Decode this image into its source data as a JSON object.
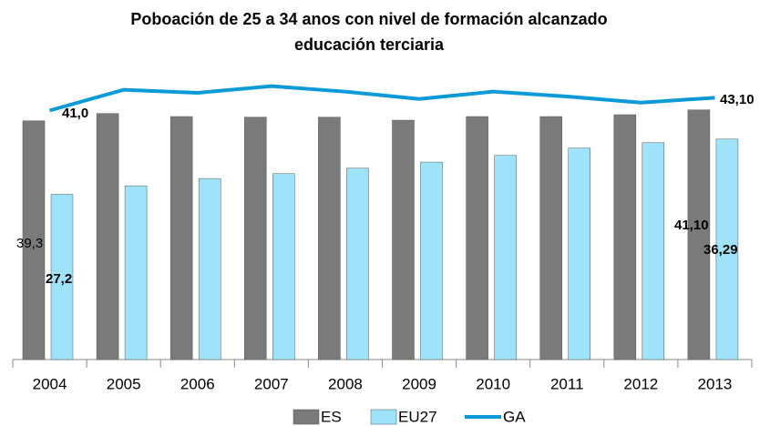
{
  "chart_data": {
    "type": "bar",
    "title": [
      "Poboación de 25 a 34 anos con nivel de formación alcanzado",
      "educación terciaria"
    ],
    "categories": [
      "2004",
      "2005",
      "2006",
      "2007",
      "2008",
      "2009",
      "2010",
      "2011",
      "2012",
      "2013"
    ],
    "ylim": [
      0,
      46
    ],
    "series": [
      {
        "name": "ES",
        "type": "bar",
        "color": "#7a7a7a",
        "values": [
          39.3,
          40.5,
          40.0,
          39.9,
          39.9,
          39.4,
          40.0,
          40.0,
          40.3,
          41.1
        ],
        "value_labels": [
          "39,3",
          null,
          null,
          null,
          null,
          null,
          null,
          null,
          null,
          "41,10"
        ]
      },
      {
        "name": "EU27",
        "type": "bar",
        "color": "#9ee3f9",
        "values": [
          27.2,
          28.6,
          29.8,
          30.6,
          31.5,
          32.5,
          33.6,
          34.8,
          35.7,
          36.29
        ],
        "value_labels": [
          "27,2",
          null,
          null,
          null,
          null,
          null,
          null,
          null,
          null,
          "36,29"
        ]
      },
      {
        "name": "GA",
        "type": "line",
        "color": "#0a9ad8",
        "values": [
          41.0,
          44.4,
          43.9,
          45.0,
          44.1,
          42.9,
          44.1,
          43.3,
          42.3,
          43.1
        ],
        "value_labels": [
          "41,0",
          null,
          null,
          null,
          null,
          null,
          null,
          null,
          null,
          "43,10"
        ]
      }
    ]
  }
}
